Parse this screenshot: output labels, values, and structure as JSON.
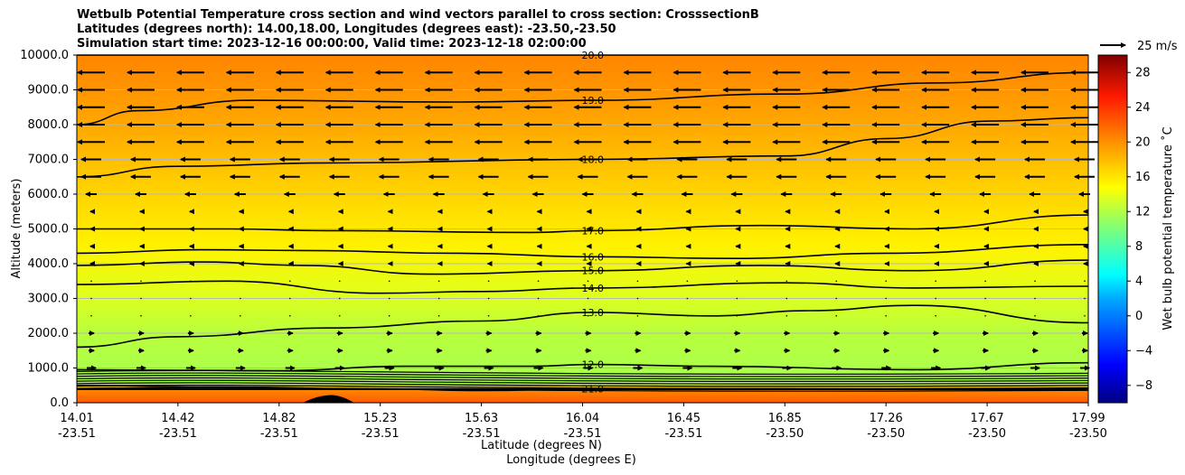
{
  "chart_data": {
    "type": "contour",
    "title_lines": [
      "Wetbulb Potential Temperature cross section and wind vectors parallel to cross section: CrosssectionB",
      "Latitudes (degrees north): 14.00,18.00, Longitudes (degrees east): -23.50,-23.50",
      "Simulation start time: 2023-12-16 00:00:00, Valid time: 2023-12-18 02:00:00"
    ],
    "ylabel": "Altitude (meters)",
    "xlabel": "Latitude (degrees N)",
    "xlabel2": "Longitude (degrees E)",
    "ylim": [
      0,
      10000
    ],
    "xlim": [
      14.01,
      17.99
    ],
    "y_ticks": [
      "0.0",
      "1000.0",
      "2000.0",
      "3000.0",
      "4000.0",
      "5000.0",
      "6000.0",
      "7000.0",
      "8000.0",
      "9000.0",
      "10000.0"
    ],
    "x_ticks": [
      {
        "lat": "14.01",
        "lon": "-23.51"
      },
      {
        "lat": "14.42",
        "lon": "-23.51"
      },
      {
        "lat": "14.82",
        "lon": "-23.51"
      },
      {
        "lat": "15.23",
        "lon": "-23.51"
      },
      {
        "lat": "15.63",
        "lon": "-23.51"
      },
      {
        "lat": "16.04",
        "lon": "-23.51"
      },
      {
        "lat": "16.45",
        "lon": "-23.51"
      },
      {
        "lat": "16.85",
        "lon": "-23.50"
      },
      {
        "lat": "17.26",
        "lon": "-23.50"
      },
      {
        "lat": "17.67",
        "lon": "-23.50"
      },
      {
        "lat": "17.99",
        "lon": "-23.50"
      }
    ],
    "colorbar": {
      "label": "Wet bulb potential temperature ˚C",
      "range": [
        -10,
        30
      ],
      "ticks": [
        "−8",
        "−4",
        "0",
        "4",
        "8",
        "12",
        "16",
        "20",
        "24",
        "28"
      ]
    },
    "quiver_key": "25 m/s",
    "contours": [
      {
        "value": "20.0",
        "points": [
          [
            14.01,
            10000
          ],
          [
            17.99,
            10000
          ]
        ]
      },
      {
        "value": "19.0",
        "points": [
          [
            14.01,
            8000
          ],
          [
            14.25,
            8400
          ],
          [
            14.7,
            8700
          ],
          [
            15.5,
            8650
          ],
          [
            16.04,
            8700
          ],
          [
            16.8,
            8880
          ],
          [
            17.4,
            9200
          ],
          [
            17.99,
            9500
          ]
        ]
      },
      {
        "value": "18.0",
        "points": [
          [
            14.01,
            6500
          ],
          [
            14.4,
            6800
          ],
          [
            15.0,
            6900
          ],
          [
            16.04,
            7000
          ],
          [
            16.8,
            7100
          ],
          [
            17.2,
            7600
          ],
          [
            17.6,
            8100
          ],
          [
            17.99,
            8200
          ]
        ]
      },
      {
        "value": "17.0",
        "points": [
          [
            14.01,
            5000
          ],
          [
            14.6,
            5000
          ],
          [
            15.0,
            4950
          ],
          [
            15.8,
            4900
          ],
          [
            16.04,
            4950
          ],
          [
            16.7,
            5100
          ],
          [
            17.3,
            5000
          ],
          [
            17.99,
            5400
          ]
        ]
      },
      {
        "value": "16.0",
        "points": [
          [
            14.01,
            4300
          ],
          [
            14.5,
            4400
          ],
          [
            14.9,
            4380
          ],
          [
            15.5,
            4300
          ],
          [
            16.04,
            4200
          ],
          [
            16.6,
            4150
          ],
          [
            17.2,
            4300
          ],
          [
            17.99,
            4550
          ]
        ]
      },
      {
        "value": "15.0",
        "points": [
          [
            14.01,
            3950
          ],
          [
            14.5,
            4050
          ],
          [
            14.9,
            3950
          ],
          [
            15.4,
            3700
          ],
          [
            16.04,
            3800
          ],
          [
            16.7,
            3950
          ],
          [
            17.3,
            3800
          ],
          [
            17.99,
            4100
          ]
        ]
      },
      {
        "value": "14.0",
        "points": [
          [
            14.01,
            3400
          ],
          [
            14.6,
            3500
          ],
          [
            15.2,
            3150
          ],
          [
            15.6,
            3200
          ],
          [
            16.04,
            3300
          ],
          [
            16.8,
            3450
          ],
          [
            17.3,
            3300
          ],
          [
            17.99,
            3350
          ]
        ]
      },
      {
        "value": "13.0",
        "points": [
          [
            14.01,
            1600
          ],
          [
            14.4,
            1900
          ],
          [
            15.0,
            2150
          ],
          [
            15.6,
            2350
          ],
          [
            16.04,
            2600
          ],
          [
            16.5,
            2500
          ],
          [
            16.9,
            2650
          ],
          [
            17.3,
            2800
          ],
          [
            17.99,
            2300
          ]
        ]
      },
      {
        "value": "12.0",
        "points": [
          [
            14.01,
            950
          ],
          [
            14.8,
            920
          ],
          [
            15.3,
            1050
          ],
          [
            15.8,
            1050
          ],
          [
            16.04,
            1100
          ],
          [
            16.5,
            1050
          ],
          [
            17.3,
            950
          ],
          [
            17.99,
            1150
          ]
        ]
      },
      {
        "value": "21.0",
        "points": [
          [
            14.01,
            500
          ],
          [
            14.6,
            450
          ],
          [
            15.2,
            400
          ],
          [
            15.6,
            350
          ],
          [
            16.04,
            400
          ],
          [
            16.8,
            400
          ],
          [
            17.99,
            380
          ]
        ]
      }
    ]
  }
}
